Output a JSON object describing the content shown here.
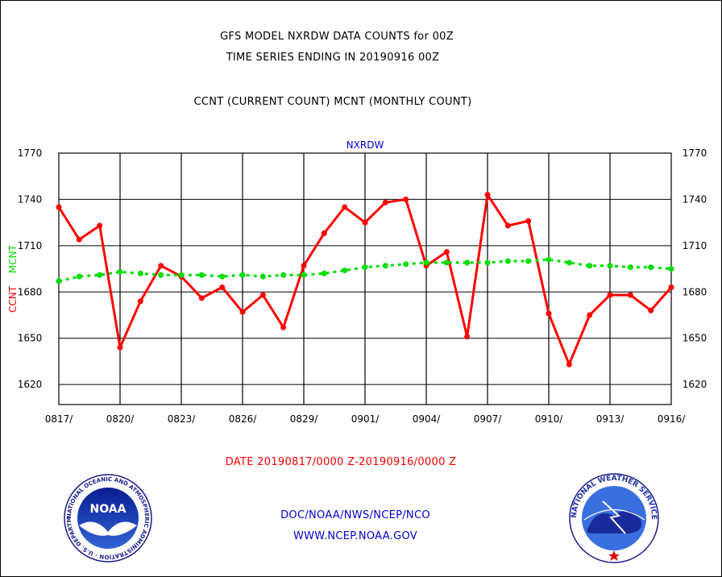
{
  "header": {
    "title": "GFS MODEL NXRDW DATA COUNTS for 00Z",
    "subtitle": "TIME SERIES ENDING IN 20190916 00Z",
    "legend_text": "CCNT (CURRENT COUNT) MCNT (MONTHLY COUNT)"
  },
  "footer": {
    "date_range": "DATE 20190817/0000 Z-20190916/0000 Z",
    "credit": "DOC/NOAA/NWS/NCEP/NCO",
    "website": "WWW.NCEP.NOAA.GOV"
  },
  "logos": {
    "noaa": {
      "text": "NOAA",
      "ring_text": "NATIONAL OCEANIC AND ATMOSPHERIC ADMINISTRATION · U.S. DEPARTMENT OF COMMERCE"
    },
    "nws": {
      "ring_text": "NATIONAL WEATHER SERVICE"
    }
  },
  "chart_data": {
    "type": "line",
    "title": "NXRDW",
    "ylabel_parts": [
      {
        "text": "CCNT",
        "color": "#ff0000"
      },
      {
        "text": "MCNT",
        "color": "#00dd00"
      }
    ],
    "ylim": [
      1607,
      1770
    ],
    "yticks": [
      1620,
      1650,
      1680,
      1710,
      1740,
      1770
    ],
    "x": [
      "0817",
      "0818",
      "0819",
      "0820",
      "0821",
      "0822",
      "0823",
      "0824",
      "0825",
      "0826",
      "0827",
      "0828",
      "0829",
      "0830",
      "0831",
      "0901",
      "0902",
      "0903",
      "0904",
      "0905",
      "0906",
      "0907",
      "0908",
      "0909",
      "0910",
      "0911",
      "0912",
      "0913",
      "0914",
      "0915",
      "0916"
    ],
    "xtick_labels": [
      "0817/",
      "0820/",
      "0823/",
      "0826/",
      "0829/",
      "0901/",
      "0904/",
      "0907/",
      "0910/",
      "0913/",
      "0916/"
    ],
    "xtick_index": [
      0,
      3,
      6,
      9,
      12,
      15,
      18,
      21,
      24,
      27,
      30
    ],
    "grid": true,
    "series": [
      {
        "name": "CCNT",
        "color": "#ff0000",
        "style": "solid",
        "values": [
          1735,
          1714,
          1723,
          1644,
          1674,
          1697,
          1690,
          1676,
          1683,
          1667,
          1678,
          1657,
          1697,
          1718,
          1735,
          1725,
          1738,
          1740,
          1697,
          1706,
          1651,
          1743,
          1723,
          1726,
          1666,
          1633,
          1665,
          1678,
          1678,
          1668,
          1683
        ]
      },
      {
        "name": "MCNT",
        "color": "#00dd00",
        "style": "dotted",
        "values": [
          1687,
          1690,
          1691,
          1693,
          1692,
          1691,
          1691,
          1691,
          1690,
          1691,
          1690,
          1691,
          1691,
          1692,
          1694,
          1696,
          1697,
          1698,
          1699,
          1699,
          1699,
          1699,
          1700,
          1700,
          1701,
          1699,
          1697,
          1697,
          1696,
          1696,
          1695
        ]
      }
    ]
  }
}
